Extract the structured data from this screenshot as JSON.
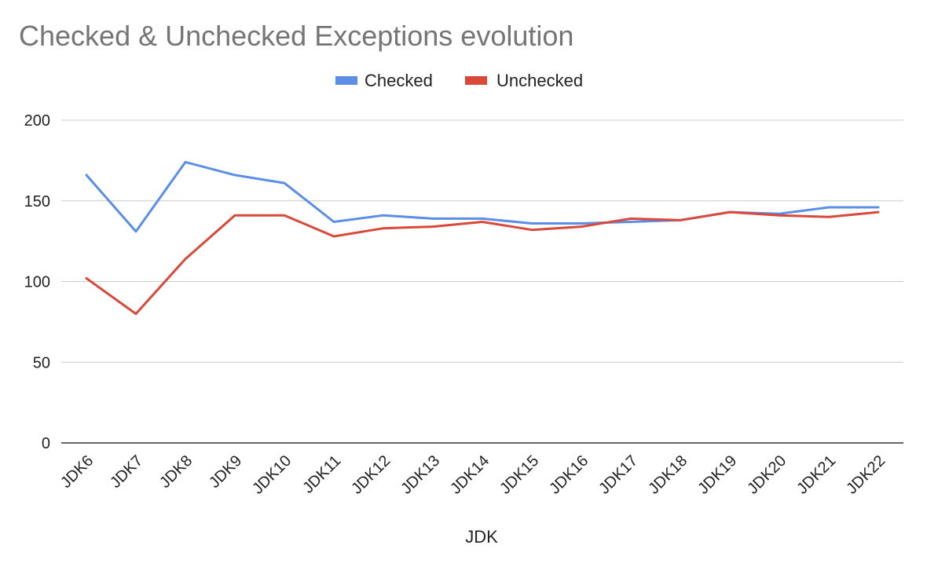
{
  "chart_data": {
    "type": "line",
    "title": "Checked & Unchecked Exceptions evolution",
    "xlabel": "JDK",
    "ylabel": "",
    "ylim": [
      0,
      200
    ],
    "yticks": [
      "0",
      "50",
      "100",
      "150",
      "200"
    ],
    "grid": true,
    "legend_position": "top",
    "categories": [
      "JDK6",
      "JDK7",
      "JDK8",
      "JDK9",
      "JDK10",
      "JDK11",
      "JDK12",
      "JDK13",
      "JDK14",
      "JDK15",
      "JDK16",
      "JDK17",
      "JDK18",
      "JDK19",
      "JDK20",
      "JDK21",
      "JDK22"
    ],
    "series": [
      {
        "name": "Checked",
        "color": "#5b8ee6",
        "values": [
          166,
          131,
          174,
          166,
          161,
          137,
          141,
          139,
          139,
          136,
          136,
          137,
          138,
          143,
          142,
          146,
          146
        ]
      },
      {
        "name": "Unchecked",
        "color": "#d9493a",
        "values": [
          102,
          80,
          114,
          141,
          141,
          128,
          133,
          134,
          137,
          132,
          134,
          139,
          138,
          143,
          141,
          140,
          143
        ]
      }
    ]
  }
}
